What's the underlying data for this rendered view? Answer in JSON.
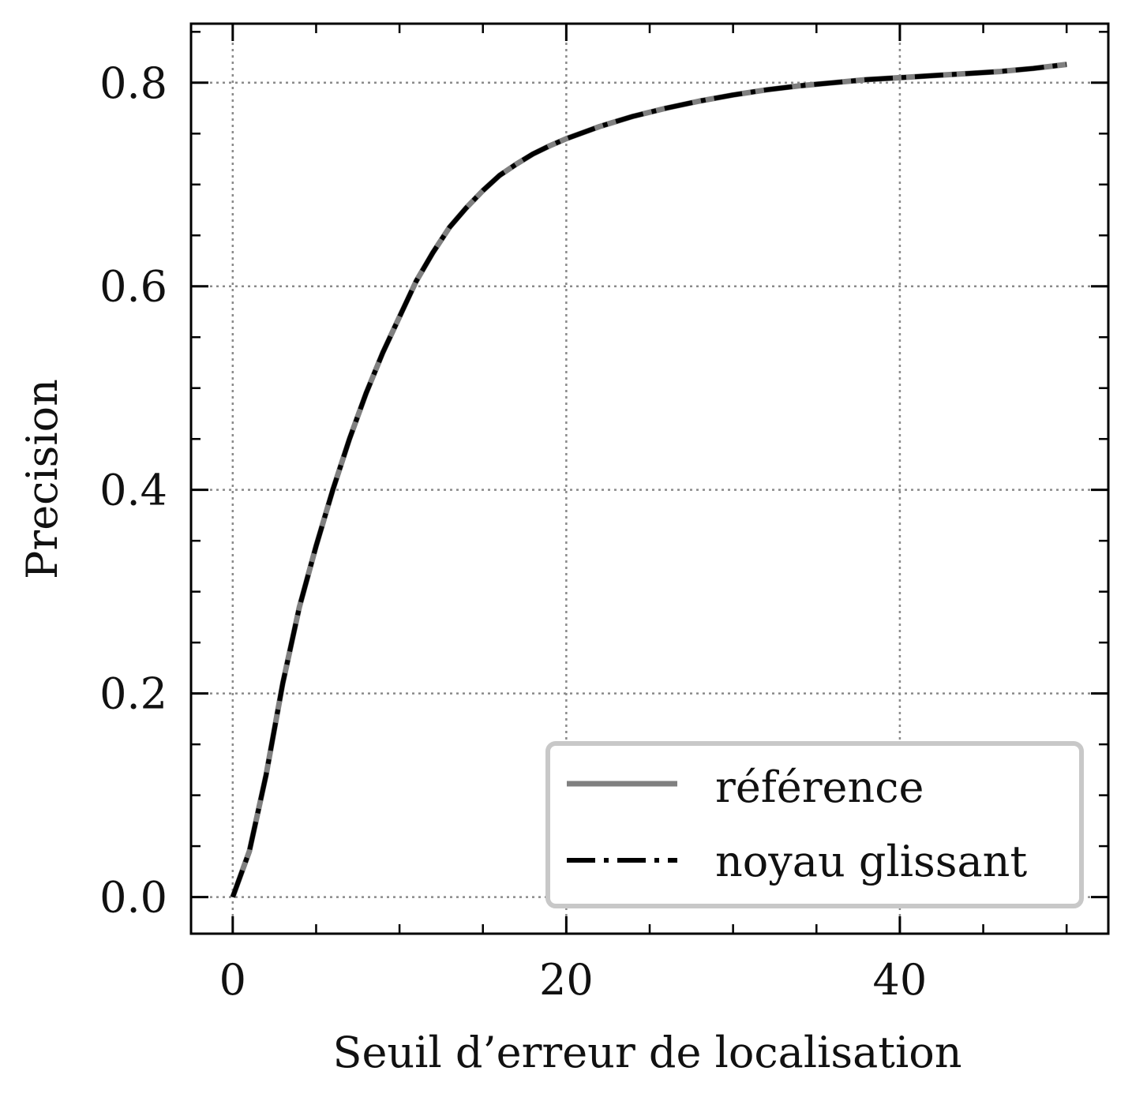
{
  "chart_data": {
    "type": "line",
    "title": "",
    "xlabel": "Seuil d’erreur de localisation",
    "ylabel": "Precision",
    "xlim": [
      -2.5,
      52.5
    ],
    "ylim": [
      -0.036,
      0.858
    ],
    "xticks": [
      0,
      20,
      40
    ],
    "xtick_labels": [
      "0",
      "20",
      "40"
    ],
    "yticks": [
      0.0,
      0.2,
      0.4,
      0.6,
      0.8
    ],
    "ytick_labels": [
      "0.0",
      "0.2",
      "0.4",
      "0.6",
      "0.8"
    ],
    "x_minor_step": 5,
    "y_minor_step": 0.05,
    "grid": true,
    "legend_position": "lower-right",
    "series": [
      {
        "name": "référence",
        "style": "solid",
        "color": "#808080",
        "x": [
          0,
          1,
          2,
          3,
          4,
          5,
          6,
          7,
          8,
          9,
          10,
          11,
          12,
          13,
          14,
          15,
          16,
          17,
          18,
          19,
          20,
          22,
          24,
          26,
          28,
          30,
          32,
          34,
          36,
          38,
          40,
          42,
          44,
          46,
          48,
          50
        ],
        "y": [
          0.0,
          0.045,
          0.12,
          0.21,
          0.285,
          0.345,
          0.4,
          0.45,
          0.495,
          0.535,
          0.57,
          0.605,
          0.633,
          0.658,
          0.677,
          0.694,
          0.709,
          0.72,
          0.73,
          0.738,
          0.745,
          0.757,
          0.767,
          0.775,
          0.782,
          0.788,
          0.793,
          0.797,
          0.8,
          0.803,
          0.805,
          0.807,
          0.809,
          0.811,
          0.814,
          0.818
        ]
      },
      {
        "name": "noyau glissant",
        "style": "dashdot",
        "color": "#000000",
        "x": [
          0,
          1,
          2,
          3,
          4,
          5,
          6,
          7,
          8,
          9,
          10,
          11,
          12,
          13,
          14,
          15,
          16,
          17,
          18,
          19,
          20,
          22,
          24,
          26,
          28,
          30,
          32,
          34,
          36,
          38,
          40,
          42,
          44,
          46,
          48,
          50
        ],
        "y": [
          0.0,
          0.045,
          0.12,
          0.21,
          0.285,
          0.345,
          0.4,
          0.45,
          0.495,
          0.535,
          0.57,
          0.605,
          0.633,
          0.658,
          0.677,
          0.694,
          0.709,
          0.72,
          0.73,
          0.738,
          0.745,
          0.757,
          0.767,
          0.775,
          0.782,
          0.788,
          0.793,
          0.797,
          0.8,
          0.803,
          0.805,
          0.807,
          0.809,
          0.811,
          0.814,
          0.818
        ]
      }
    ]
  }
}
